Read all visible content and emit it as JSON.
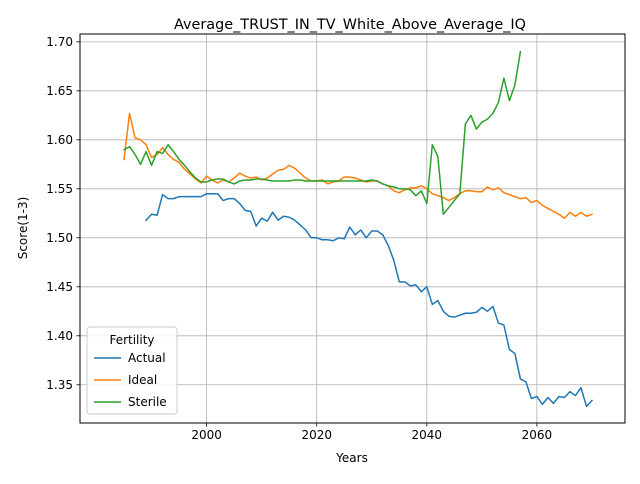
{
  "chart_data": {
    "type": "line",
    "title": "Average_TRUST_IN_TV_White_Above_Average_IQ",
    "xlabel": "Years",
    "ylabel": "Score(1-3)",
    "xlim": [
      1977,
      2076
    ],
    "ylim": [
      1.311,
      1.708
    ],
    "xticks": [
      2000,
      2020,
      2040,
      2060
    ],
    "yticks": [
      1.35,
      1.4,
      1.45,
      1.5,
      1.55,
      1.6,
      1.65,
      1.7
    ],
    "ytick_labels": [
      "1.35",
      "1.40",
      "1.45",
      "1.50",
      "1.55",
      "1.60",
      "1.65",
      "1.70"
    ],
    "grid": true,
    "legend": {
      "title": "Fertility",
      "position": "lower-left"
    },
    "series": [
      {
        "name": "Actual",
        "color": "#1f77b4",
        "x": [
          1989,
          1990,
          1991,
          1992,
          1993,
          1994,
          1995,
          1996,
          1997,
          1998,
          1999,
          2000,
          2001,
          2002,
          2003,
          2004,
          2005,
          2006,
          2007,
          2008,
          2009,
          2010,
          2011,
          2012,
          2013,
          2014,
          2015,
          2016,
          2017,
          2018,
          2019,
          2020,
          2021,
          2022,
          2023,
          2024,
          2025,
          2026,
          2027,
          2028,
          2029,
          2030,
          2031,
          2032,
          2033,
          2034,
          2035,
          2036,
          2037,
          2038,
          2039,
          2040,
          2041,
          2042,
          2043,
          2044,
          2045,
          2046,
          2047,
          2048,
          2049,
          2050,
          2051,
          2052,
          2053,
          2054,
          2055,
          2056,
          2057,
          2058,
          2059,
          2060,
          2061,
          2062,
          2063,
          2064,
          2065,
          2066,
          2067,
          2068,
          2069,
          2070
        ],
        "y": [
          1.518,
          1.524,
          1.523,
          1.544,
          1.54,
          1.54,
          1.542,
          1.542,
          1.542,
          1.542,
          1.542,
          1.545,
          1.545,
          1.545,
          1.538,
          1.54,
          1.54,
          1.535,
          1.528,
          1.527,
          1.512,
          1.52,
          1.517,
          1.526,
          1.518,
          1.522,
          1.521,
          1.518,
          1.513,
          1.508,
          1.5,
          1.5,
          1.498,
          1.498,
          1.497,
          1.5,
          1.499,
          1.511,
          1.503,
          1.508,
          1.5,
          1.507,
          1.507,
          1.503,
          1.492,
          1.477,
          1.455,
          1.455,
          1.451,
          1.452,
          1.445,
          1.45,
          1.432,
          1.436,
          1.425,
          1.42,
          1.419,
          1.421,
          1.423,
          1.423,
          1.424,
          1.429,
          1.425,
          1.43,
          1.413,
          1.411,
          1.386,
          1.382,
          1.356,
          1.353,
          1.336,
          1.338,
          1.33,
          1.337,
          1.331,
          1.338,
          1.337,
          1.343,
          1.339,
          1.347,
          1.328,
          1.334
        ]
      },
      {
        "name": "Ideal",
        "color": "#ff7f0e",
        "x": [
          1985,
          1986,
          1987,
          1988,
          1989,
          1990,
          1991,
          1992,
          1993,
          1994,
          1995,
          1996,
          1997,
          1998,
          1999,
          2000,
          2001,
          2002,
          2003,
          2004,
          2005,
          2006,
          2007,
          2008,
          2009,
          2010,
          2011,
          2012,
          2013,
          2014,
          2015,
          2016,
          2017,
          2018,
          2019,
          2020,
          2021,
          2022,
          2023,
          2024,
          2025,
          2026,
          2027,
          2028,
          2029,
          2030,
          2031,
          2032,
          2033,
          2034,
          2035,
          2036,
          2037,
          2038,
          2039,
          2040,
          2041,
          2042,
          2043,
          2044,
          2045,
          2046,
          2047,
          2048,
          2049,
          2050,
          2051,
          2052,
          2053,
          2054,
          2055,
          2056,
          2057,
          2058,
          2059,
          2060,
          2061,
          2062,
          2063,
          2064,
          2065,
          2066,
          2067,
          2068,
          2069,
          2070
        ],
        "y": [
          1.58,
          1.627,
          1.602,
          1.6,
          1.595,
          1.582,
          1.585,
          1.592,
          1.585,
          1.58,
          1.577,
          1.57,
          1.565,
          1.56,
          1.556,
          1.563,
          1.559,
          1.556,
          1.559,
          1.557,
          1.561,
          1.566,
          1.563,
          1.561,
          1.562,
          1.559,
          1.561,
          1.565,
          1.569,
          1.57,
          1.574,
          1.571,
          1.566,
          1.561,
          1.558,
          1.558,
          1.559,
          1.555,
          1.557,
          1.558,
          1.562,
          1.562,
          1.561,
          1.559,
          1.557,
          1.558,
          1.558,
          1.555,
          1.553,
          1.548,
          1.546,
          1.549,
          1.551,
          1.551,
          1.553,
          1.55,
          1.545,
          1.543,
          1.541,
          1.538,
          1.541,
          1.545,
          1.548,
          1.548,
          1.547,
          1.547,
          1.552,
          1.549,
          1.551,
          1.546,
          1.544,
          1.542,
          1.54,
          1.541,
          1.536,
          1.538,
          1.533,
          1.53,
          1.527,
          1.524,
          1.52,
          1.526,
          1.522,
          1.526,
          1.522,
          1.524
        ]
      },
      {
        "name": "Sterile",
        "color": "#2ca02c",
        "x": [
          1985,
          1986,
          1987,
          1988,
          1989,
          1990,
          1991,
          1992,
          1993,
          1994,
          1995,
          1996,
          1997,
          1998,
          1999,
          2000,
          2001,
          2002,
          2003,
          2004,
          2005,
          2006,
          2007,
          2008,
          2009,
          2010,
          2011,
          2012,
          2013,
          2014,
          2015,
          2016,
          2017,
          2018,
          2019,
          2020,
          2021,
          2022,
          2023,
          2024,
          2025,
          2026,
          2027,
          2028,
          2029,
          2030,
          2031,
          2032,
          2033,
          2034,
          2035,
          2036,
          2037,
          2038,
          2039,
          2040,
          2041,
          2042,
          2043,
          2044,
          2045,
          2046,
          2047,
          2048,
          2049,
          2050,
          2051,
          2052,
          2053,
          2054,
          2055,
          2056,
          2057
        ],
        "y": [
          1.59,
          1.593,
          1.585,
          1.575,
          1.588,
          1.574,
          1.588,
          1.586,
          1.595,
          1.588,
          1.58,
          1.574,
          1.567,
          1.561,
          1.557,
          1.557,
          1.559,
          1.56,
          1.56,
          1.557,
          1.555,
          1.558,
          1.559,
          1.559,
          1.56,
          1.56,
          1.559,
          1.558,
          1.558,
          1.558,
          1.558,
          1.559,
          1.559,
          1.558,
          1.558,
          1.558,
          1.558,
          1.558,
          1.558,
          1.558,
          1.558,
          1.558,
          1.558,
          1.558,
          1.558,
          1.559,
          1.558,
          1.555,
          1.553,
          1.552,
          1.55,
          1.55,
          1.549,
          1.543,
          1.548,
          1.535,
          1.595,
          1.583,
          1.524,
          1.531,
          1.538,
          1.545,
          1.616,
          1.625,
          1.611,
          1.618,
          1.621,
          1.627,
          1.638,
          1.663,
          1.64,
          1.656,
          1.69
        ]
      }
    ]
  }
}
